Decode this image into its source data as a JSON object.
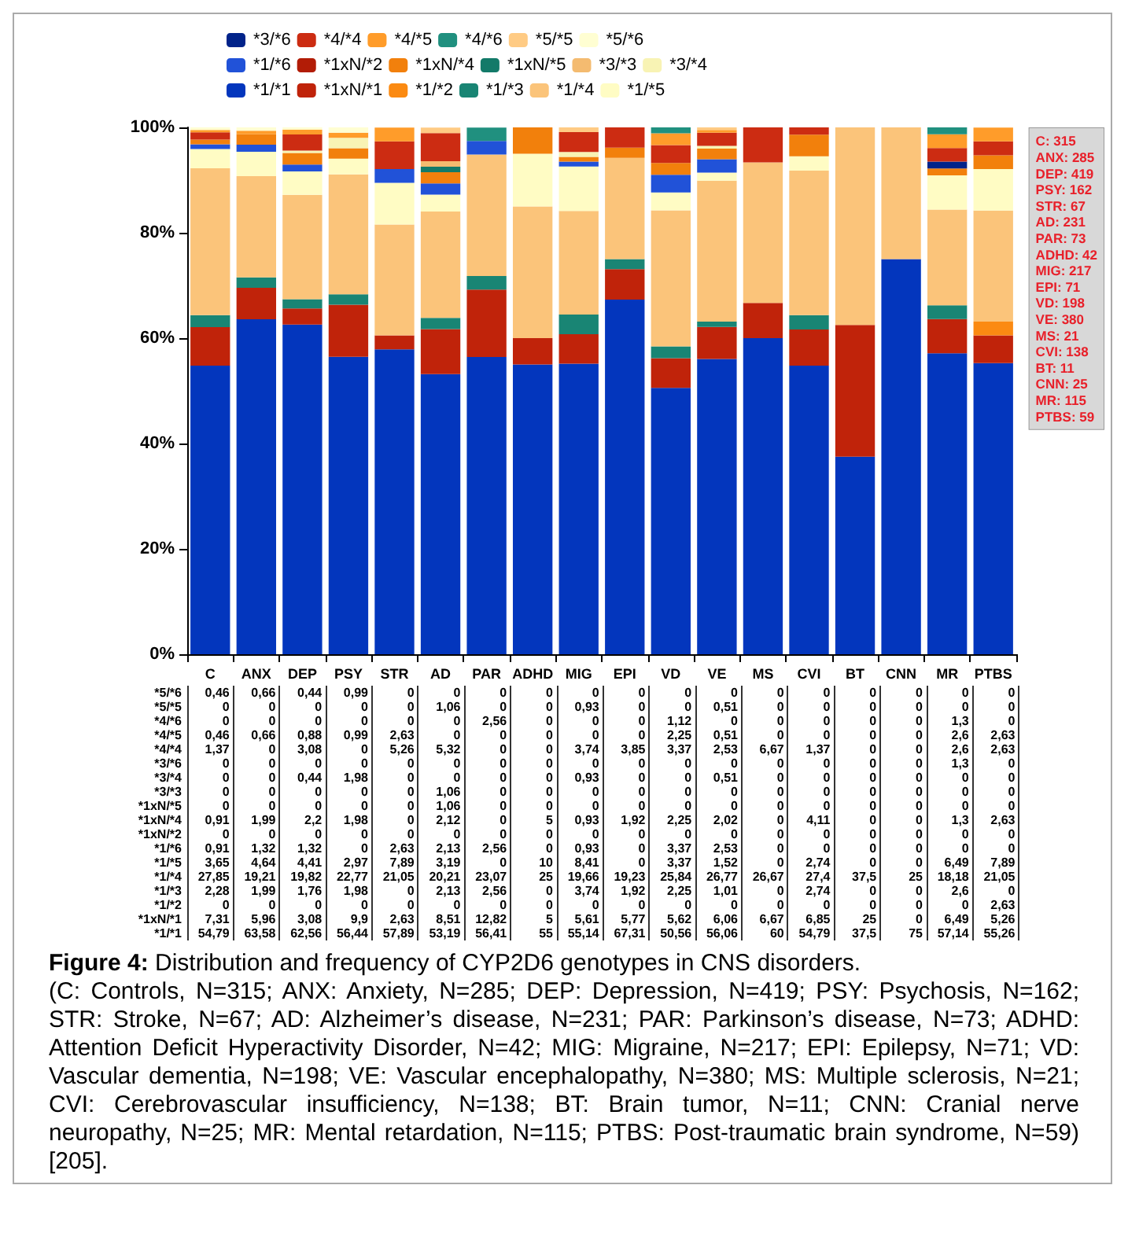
{
  "chart_data": {
    "type": "bar",
    "stacked": true,
    "title": "Figure 4: Distribution and frequency of CYP2D6 genotypes in CNS disorders.",
    "categories": [
      "C",
      "ANX",
      "DEP",
      "PSY",
      "STR",
      "AD",
      "PAR",
      "ADHD",
      "MIG",
      "EPI",
      "VD",
      "VE",
      "MS",
      "CVI",
      "BT",
      "CNN",
      "MR",
      "PTBS"
    ],
    "ylim": [
      0,
      100
    ],
    "yticks": [
      {
        "value": 0,
        "label": "0%"
      },
      {
        "value": 20,
        "label": "20%"
      },
      {
        "value": 40,
        "label": "40%"
      },
      {
        "value": 60,
        "label": "60%"
      },
      {
        "value": 80,
        "label": "80%"
      },
      {
        "value": 100,
        "label": "100%"
      }
    ],
    "legend": "top",
    "series": [
      {
        "name": "*1/*1",
        "color": "#0336bd",
        "values": [
          54.79,
          63.58,
          62.56,
          56.44,
          57.89,
          53.19,
          56.41,
          55,
          55.14,
          67.31,
          50.56,
          56.06,
          60,
          54.79,
          37.5,
          75,
          57.14,
          55.26
        ],
        "value_labels": [
          "54,79",
          "63,58",
          "62,56",
          "56,44",
          "57,89",
          "53,19",
          "56,41",
          "55",
          "55,14",
          "67,31",
          "50,56",
          "56,06",
          "60",
          "54,79",
          "37,5",
          "75",
          "57,14",
          "55,26"
        ]
      },
      {
        "name": "*1xN/*1",
        "color": "#c0230a",
        "values": [
          7.31,
          5.96,
          3.08,
          9.9,
          2.63,
          8.51,
          12.82,
          5,
          5.61,
          5.77,
          5.62,
          6.06,
          6.67,
          6.85,
          25,
          0,
          6.49,
          5.26
        ],
        "value_labels": [
          "7,31",
          "5,96",
          "3,08",
          "9,9",
          "2,63",
          "8,51",
          "12,82",
          "5",
          "5,61",
          "5,77",
          "5,62",
          "6,06",
          "6,67",
          "6,85",
          "25",
          "0",
          "6,49",
          "5,26"
        ]
      },
      {
        "name": "*1/*2",
        "color": "#fb8a12",
        "values": [
          0,
          0,
          0,
          0,
          0,
          0,
          0,
          0,
          0,
          0,
          0,
          0,
          0,
          0,
          0,
          0,
          0,
          2.63
        ],
        "value_labels": [
          "0",
          "0",
          "0",
          "0",
          "0",
          "0",
          "0",
          "0",
          "0",
          "0",
          "0",
          "0",
          "0",
          "0",
          "0",
          "0",
          "0",
          "2,63"
        ]
      },
      {
        "name": "*1/*3",
        "color": "#198574",
        "values": [
          2.28,
          1.99,
          1.76,
          1.98,
          0,
          2.13,
          2.56,
          0,
          3.74,
          1.92,
          2.25,
          1.01,
          0,
          2.74,
          0,
          0,
          2.6,
          0
        ],
        "value_labels": [
          "2,28",
          "1,99",
          "1,76",
          "1,98",
          "0",
          "2,13",
          "2,56",
          "0",
          "3,74",
          "1,92",
          "2,25",
          "1,01",
          "0",
          "2,74",
          "0",
          "0",
          "2,6",
          "0"
        ]
      },
      {
        "name": "*1/*4",
        "color": "#fbc47a",
        "values": [
          27.85,
          19.21,
          19.82,
          22.77,
          21.05,
          20.21,
          23.07,
          25,
          19.66,
          19.23,
          25.84,
          26.77,
          26.67,
          27.4,
          37.5,
          25,
          18.18,
          21.05
        ],
        "value_labels": [
          "27,85",
          "19,21",
          "19,82",
          "22,77",
          "21,05",
          "20,21",
          "23,07",
          "25",
          "19,66",
          "19,23",
          "25,84",
          "26,77",
          "26,67",
          "27,4",
          "37,5",
          "25",
          "18,18",
          "21,05"
        ]
      },
      {
        "name": "*1/*5",
        "color": "#fffcc4",
        "values": [
          3.65,
          4.64,
          4.41,
          2.97,
          7.89,
          3.19,
          0,
          10,
          8.41,
          0,
          3.37,
          1.52,
          0,
          2.74,
          0,
          0,
          6.49,
          7.89
        ],
        "value_labels": [
          "3,65",
          "4,64",
          "4,41",
          "2,97",
          "7,89",
          "3,19",
          "0",
          "10",
          "8,41",
          "0",
          "3,37",
          "1,52",
          "0",
          "2,74",
          "0",
          "0",
          "6,49",
          "7,89"
        ]
      },
      {
        "name": "*1/*6",
        "color": "#2152d8",
        "values": [
          0.91,
          1.32,
          1.32,
          0,
          2.63,
          2.13,
          2.56,
          0,
          0.93,
          0,
          3.37,
          2.53,
          0,
          0,
          0,
          0,
          0,
          0
        ],
        "value_labels": [
          "0,91",
          "1,32",
          "1,32",
          "0",
          "2,63",
          "2,13",
          "2,56",
          "0",
          "0,93",
          "0",
          "3,37",
          "2,53",
          "0",
          "0",
          "0",
          "0",
          "0",
          "0"
        ]
      },
      {
        "name": "*1xN/*2",
        "color": "#b21c06",
        "values": [
          0,
          0,
          0,
          0,
          0,
          0,
          0,
          0,
          0,
          0,
          0,
          0,
          0,
          0,
          0,
          0,
          0,
          0
        ],
        "value_labels": [
          "0",
          "0",
          "0",
          "0",
          "0",
          "0",
          "0",
          "0",
          "0",
          "0",
          "0",
          "0",
          "0",
          "0",
          "0",
          "0",
          "0",
          "0"
        ]
      },
      {
        "name": "*1xN/*4",
        "color": "#f2800c",
        "values": [
          0.91,
          1.99,
          2.2,
          1.98,
          0,
          2.12,
          0,
          5,
          0.93,
          1.92,
          2.25,
          2.02,
          0,
          4.11,
          0,
          0,
          1.3,
          2.63
        ],
        "value_labels": [
          "0,91",
          "1,99",
          "2,2",
          "1,98",
          "0",
          "2,12",
          "0",
          "5",
          "0,93",
          "1,92",
          "2,25",
          "2,02",
          "0",
          "4,11",
          "0",
          "0",
          "1,3",
          "2,63"
        ]
      },
      {
        "name": "*1xN/*5",
        "color": "#137a69",
        "values": [
          0,
          0,
          0,
          0,
          0,
          1.06,
          0,
          0,
          0,
          0,
          0,
          0,
          0,
          0,
          0,
          0,
          0,
          0
        ],
        "value_labels": [
          "0",
          "0",
          "0",
          "0",
          "0",
          "1,06",
          "0",
          "0",
          "0",
          "0",
          "0",
          "0",
          "0",
          "0",
          "0",
          "0",
          "0",
          "0"
        ]
      },
      {
        "name": "*3/*3",
        "color": "#f4bb70",
        "values": [
          0,
          0,
          0,
          0,
          0,
          1.06,
          0,
          0,
          0,
          0,
          0,
          0,
          0,
          0,
          0,
          0,
          0,
          0
        ],
        "value_labels": [
          "0",
          "0",
          "0",
          "0",
          "0",
          "1,06",
          "0",
          "0",
          "0",
          "0",
          "0",
          "0",
          "0",
          "0",
          "0",
          "0",
          "0",
          "0"
        ]
      },
      {
        "name": "*3/*4",
        "color": "#f8f3b4",
        "values": [
          0,
          0,
          0.44,
          1.98,
          0,
          0,
          0,
          0,
          0.93,
          0,
          0,
          0.51,
          0,
          0,
          0,
          0,
          0,
          0
        ],
        "value_labels": [
          "0",
          "0",
          "0,44",
          "1,98",
          "0",
          "0",
          "0",
          "0",
          "0,93",
          "0",
          "0",
          "0,51",
          "0",
          "0",
          "0",
          "0",
          "0",
          "0"
        ]
      },
      {
        "name": "*3/*6",
        "color": "#01238a",
        "values": [
          0,
          0,
          0,
          0,
          0,
          0,
          0,
          0,
          0,
          0,
          0,
          0,
          0,
          0,
          0,
          0,
          1.3,
          0
        ],
        "value_labels": [
          "0",
          "0",
          "0",
          "0",
          "0",
          "0",
          "0",
          "0",
          "0",
          "0",
          "0",
          "0",
          "0",
          "0",
          "0",
          "0",
          "1,3",
          "0"
        ]
      },
      {
        "name": "*4/*4",
        "color": "#cc2c12",
        "values": [
          1.37,
          0,
          3.08,
          0,
          5.26,
          5.32,
          0,
          0,
          3.74,
          3.85,
          3.37,
          2.53,
          6.67,
          1.37,
          0,
          0,
          2.6,
          2.63
        ],
        "value_labels": [
          "1,37",
          "0",
          "3,08",
          "0",
          "5,26",
          "5,32",
          "0",
          "0",
          "3,74",
          "3,85",
          "3,37",
          "2,53",
          "6,67",
          "1,37",
          "0",
          "0",
          "2,6",
          "2,63"
        ]
      },
      {
        "name": "*4/*5",
        "color": "#ff9c2a",
        "values": [
          0.46,
          0.66,
          0.88,
          0.99,
          2.63,
          0,
          0,
          0,
          0,
          0,
          2.25,
          0.51,
          0,
          0,
          0,
          0,
          2.6,
          2.63
        ],
        "value_labels": [
          "0,46",
          "0,66",
          "0,88",
          "0,99",
          "2,63",
          "0",
          "0",
          "0",
          "0",
          "0",
          "2,25",
          "0,51",
          "0",
          "0",
          "0",
          "0",
          "2,6",
          "2,63"
        ]
      },
      {
        "name": "*4/*6",
        "color": "#20907f",
        "values": [
          0,
          0,
          0,
          0,
          0,
          0,
          2.56,
          0,
          0,
          0,
          1.12,
          0,
          0,
          0,
          0,
          0,
          1.3,
          0
        ],
        "value_labels": [
          "0",
          "0",
          "0",
          "0",
          "0",
          "0",
          "2,56",
          "0",
          "0",
          "0",
          "1,12",
          "0",
          "0",
          "0",
          "0",
          "0",
          "1,3",
          "0"
        ]
      },
      {
        "name": "*5/*5",
        "color": "#ffcb84",
        "values": [
          0,
          0,
          0,
          0,
          0,
          1.06,
          0,
          0,
          0.93,
          0,
          0,
          0.51,
          0,
          0,
          0,
          0,
          0,
          0
        ],
        "value_labels": [
          "0",
          "0",
          "0",
          "0",
          "0",
          "1,06",
          "0",
          "0",
          "0,93",
          "0",
          "0",
          "0,51",
          "0",
          "0",
          "0",
          "0",
          "0",
          "0"
        ]
      },
      {
        "name": "*5/*6",
        "color": "#fffed2",
        "values": [
          0.46,
          0.66,
          0.44,
          0.99,
          0,
          0,
          0,
          0,
          0,
          0,
          0,
          0,
          0,
          0,
          0,
          0,
          0,
          0
        ],
        "value_labels": [
          "0,46",
          "0,66",
          "0,44",
          "0,99",
          "0",
          "0",
          "0",
          "0",
          "0",
          "0",
          "0",
          "0",
          "0",
          "0",
          "0",
          "0",
          "0",
          "0"
        ]
      }
    ],
    "annotations": [
      "C: 315\nANX: 285\nDEP: 419\nPSY: 162\nSTR: 67\nAD: 231\nPAR: 73\nADHD: 42\nMIG: 217\nEPI: 71\nVD: 198\nVE: 380\nMS: 21\nCVI: 138\nBT: 11\nCNN: 25\nMR: 115\nPTBS: 59",
      "(C: Controls, N=315; ANX: Anxiety, N=285; DEP: Depression, N=419; PSY: Psychosis, N=162; STR: Stroke, N=67; AD: Alzheimer’s disease, N=231; PAR: Parkinson’s disease, N=73; ADHD: Attention Deficit Hyperactivity Disorder, N=42; MIG: Migraine, N=217; EPI: Epilepsy, N=71; VD: Vascular dementia, N=198; VE: Vascular encephalopathy, N=380; MS: Multiple sclerosis, N=21; CVI: Cerebrovascular insufficiency, N=138; BT: Brain tumor, N=11; CNN: Cranial nerve neuropathy, N=25; MR: Mental retardation, N=115; PTBS: Post-traumatic brain syndrome, N=59)[205]."
    ]
  }
}
